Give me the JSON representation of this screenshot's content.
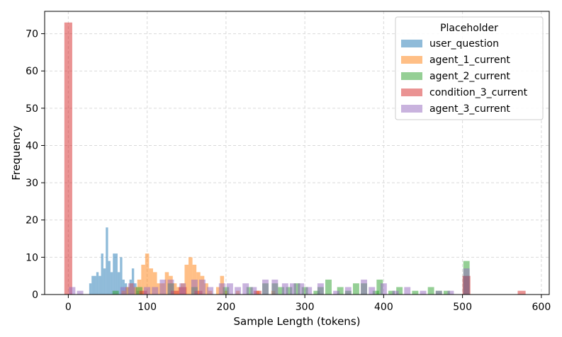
{
  "chart_data": {
    "type": "bar",
    "subtype": "overlapping-histogram",
    "xlabel": "Sample Length (tokens)",
    "ylabel": "Frequency",
    "xlim": [
      -30,
      610
    ],
    "ylim": [
      0,
      76
    ],
    "xticks": [
      0,
      100,
      200,
      300,
      400,
      500,
      600
    ],
    "yticks": [
      0,
      10,
      20,
      30,
      40,
      50,
      60,
      70
    ],
    "grid": true,
    "legend": {
      "title": "Placeholder",
      "position": "top-right"
    },
    "bar_opacity": 0.5,
    "series": [
      {
        "name": "user_question",
        "color": "#1f77b4",
        "bin_width": 3,
        "bins": [
          [
            28,
            3
          ],
          [
            31,
            5
          ],
          [
            34,
            5
          ],
          [
            37,
            6
          ],
          [
            40,
            5
          ],
          [
            43,
            11
          ],
          [
            46,
            7
          ],
          [
            49,
            18
          ],
          [
            52,
            9
          ],
          [
            55,
            6
          ],
          [
            58,
            11
          ],
          [
            61,
            11
          ],
          [
            64,
            6
          ],
          [
            67,
            10
          ],
          [
            70,
            4
          ],
          [
            73,
            3
          ],
          [
            76,
            2
          ],
          [
            79,
            4
          ],
          [
            82,
            7
          ],
          [
            85,
            3
          ],
          [
            88,
            1
          ]
        ]
      },
      {
        "name": "agent_1_current",
        "color": "#ff7f0e",
        "bin_width": 5,
        "bins": [
          [
            70,
            1
          ],
          [
            75,
            2
          ],
          [
            80,
            3
          ],
          [
            85,
            2
          ],
          [
            90,
            4
          ],
          [
            95,
            8
          ],
          [
            100,
            11
          ],
          [
            105,
            7
          ],
          [
            110,
            6
          ],
          [
            115,
            3
          ],
          [
            120,
            3
          ],
          [
            125,
            6
          ],
          [
            130,
            5
          ],
          [
            135,
            3
          ],
          [
            140,
            2
          ],
          [
            145,
            3
          ],
          [
            150,
            8
          ],
          [
            155,
            10
          ],
          [
            160,
            8
          ],
          [
            165,
            6
          ],
          [
            170,
            5
          ],
          [
            175,
            3
          ],
          [
            180,
            1
          ],
          [
            190,
            2
          ],
          [
            195,
            5
          ],
          [
            200,
            1
          ],
          [
            215,
            1
          ],
          [
            240,
            1
          ],
          [
            260,
            1
          ]
        ]
      },
      {
        "name": "agent_2_current",
        "color": "#2ca02c",
        "bin_width": 8,
        "bins": [
          [
            60,
            1
          ],
          [
            90,
            2
          ],
          [
            130,
            3
          ],
          [
            160,
            2
          ],
          [
            200,
            2
          ],
          [
            230,
            2
          ],
          [
            250,
            3
          ],
          [
            262,
            3
          ],
          [
            270,
            2
          ],
          [
            280,
            2
          ],
          [
            290,
            3
          ],
          [
            300,
            2
          ],
          [
            315,
            1
          ],
          [
            320,
            2
          ],
          [
            330,
            4
          ],
          [
            345,
            2
          ],
          [
            355,
            1
          ],
          [
            365,
            3
          ],
          [
            375,
            3
          ],
          [
            390,
            1
          ],
          [
            395,
            4
          ],
          [
            410,
            1
          ],
          [
            420,
            2
          ],
          [
            440,
            1
          ],
          [
            460,
            2
          ],
          [
            470,
            1
          ],
          [
            480,
            1
          ],
          [
            505,
            9
          ],
          [
            505,
            5
          ]
        ]
      },
      {
        "name": "condition_3_current",
        "color": "#d62728",
        "bin_width": 10,
        "bins": [
          [
            0,
            73
          ],
          [
            95,
            1
          ],
          [
            135,
            1
          ],
          [
            145,
            2
          ],
          [
            165,
            1
          ],
          [
            240,
            1
          ],
          [
            505,
            5
          ],
          [
            575,
            1
          ]
        ]
      },
      {
        "name": "agent_3_current",
        "color": "#9467bd",
        "bin_width": 8,
        "bins": [
          [
            5,
            2
          ],
          [
            15,
            1
          ],
          [
            70,
            2
          ],
          [
            80,
            3
          ],
          [
            100,
            2
          ],
          [
            110,
            2
          ],
          [
            120,
            4
          ],
          [
            130,
            4
          ],
          [
            145,
            3
          ],
          [
            160,
            4
          ],
          [
            170,
            4
          ],
          [
            180,
            2
          ],
          [
            195,
            3
          ],
          [
            205,
            3
          ],
          [
            215,
            2
          ],
          [
            225,
            3
          ],
          [
            235,
            2
          ],
          [
            250,
            4
          ],
          [
            262,
            4
          ],
          [
            275,
            3
          ],
          [
            285,
            3
          ],
          [
            295,
            3
          ],
          [
            305,
            2
          ],
          [
            320,
            3
          ],
          [
            340,
            1
          ],
          [
            355,
            2
          ],
          [
            375,
            4
          ],
          [
            385,
            2
          ],
          [
            400,
            3
          ],
          [
            415,
            1
          ],
          [
            430,
            2
          ],
          [
            450,
            1
          ],
          [
            470,
            1
          ],
          [
            485,
            1
          ],
          [
            505,
            7
          ]
        ]
      }
    ]
  }
}
